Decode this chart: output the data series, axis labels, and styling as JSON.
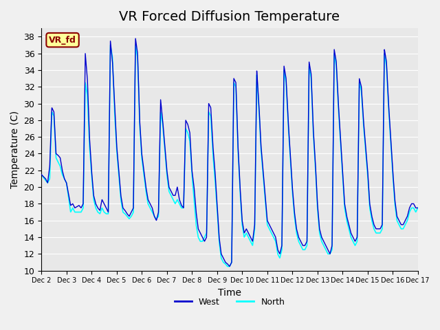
{
  "title": "VR Forced Diffusion Temperature",
  "ylabel": "Temperature (C)",
  "xlabel": "Time",
  "xlim_start": 0,
  "xlim_end": 360,
  "ylim": [
    10,
    39
  ],
  "yticks": [
    10,
    12,
    14,
    16,
    18,
    20,
    22,
    24,
    26,
    28,
    30,
    32,
    34,
    36,
    38
  ],
  "xtick_labels": [
    "Dec 2",
    "Dec 3",
    "Dec 4",
    "Dec 5",
    "Dec 6",
    "Dec 7",
    "Dec 8",
    "Dec 9",
    "Dec 10",
    "Dec 11",
    "Dec 12",
    "Dec 13",
    "Dec 14",
    "Dec 15",
    "Dec 16",
    "Dec 17"
  ],
  "xtick_positions": [
    0,
    24,
    48,
    72,
    96,
    120,
    144,
    168,
    192,
    216,
    240,
    264,
    288,
    312,
    336,
    360
  ],
  "west_color": "#0000CD",
  "north_color": "#00FFFF",
  "bg_color": "#E8E8E8",
  "grid_color": "#FFFFFF",
  "label_box_text": "VR_fd",
  "label_box_bg": "#FFFF99",
  "label_box_border": "#8B0000",
  "legend_west": "West",
  "legend_north": "North",
  "title_fontsize": 14,
  "axis_label_fontsize": 10
}
